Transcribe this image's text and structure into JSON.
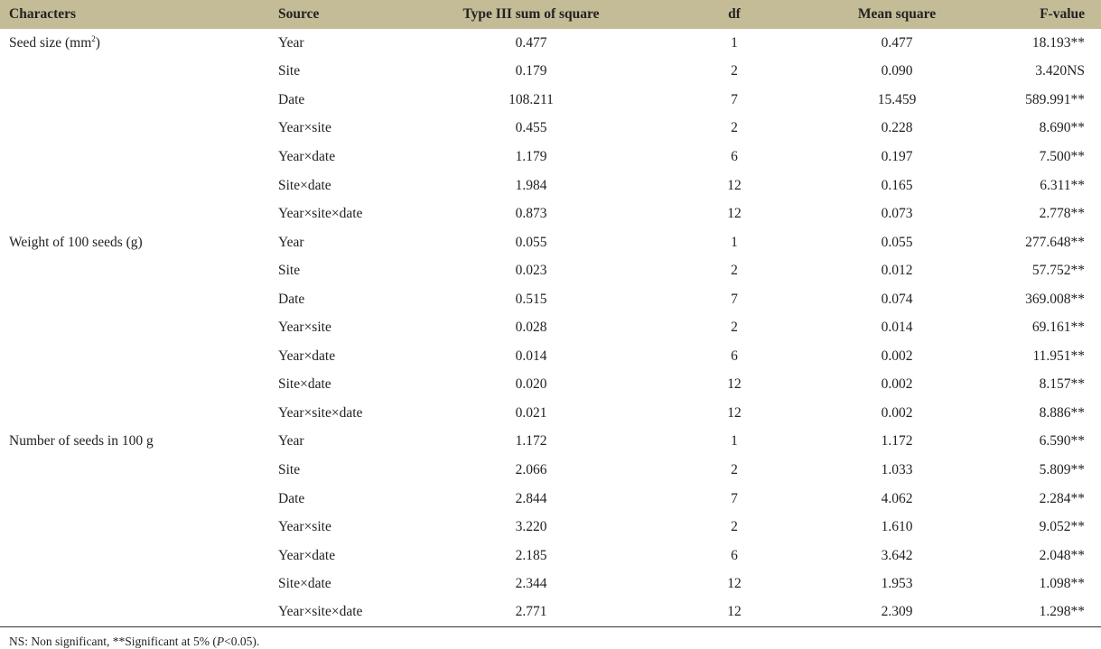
{
  "headers": [
    "Characters",
    "Source",
    "Type III sum of square",
    "df",
    "Mean square",
    "F-value"
  ],
  "header_bg": "#c4bb97",
  "groups": [
    {
      "character": "Seed size (mm",
      "character_sup": "2",
      "character_tail": ")",
      "rows": [
        [
          "Year",
          "0.477",
          "1",
          "0.477",
          "18.193**"
        ],
        [
          "Site",
          "0.179",
          "2",
          "0.090",
          "3.420NS"
        ],
        [
          "Date",
          "108.211",
          "7",
          "15.459",
          "589.991**"
        ],
        [
          "Year×site",
          "0.455",
          "2",
          "0.228",
          "8.690**"
        ],
        [
          "Year×date",
          "1.179",
          "6",
          "0.197",
          "7.500**"
        ],
        [
          "Site×date",
          "1.984",
          "12",
          "0.165",
          "6.311**"
        ],
        [
          "Year×site×date",
          "0.873",
          "12",
          "0.073",
          "2.778**"
        ]
      ]
    },
    {
      "character": "Weight of 100 seeds (g)",
      "rows": [
        [
          "Year",
          "0.055",
          "1",
          "0.055",
          "277.648**"
        ],
        [
          "Site",
          "0.023",
          "2",
          "0.012",
          "57.752**"
        ],
        [
          "Date",
          "0.515",
          "7",
          "0.074",
          "369.008**"
        ],
        [
          "Year×site",
          "0.028",
          "2",
          "0.014",
          "69.161**"
        ],
        [
          "Year×date",
          "0.014",
          "6",
          "0.002",
          "11.951**"
        ],
        [
          "Site×date",
          "0.020",
          "12",
          "0.002",
          "8.157**"
        ],
        [
          "Year×site×date",
          "0.021",
          "12",
          "0.002",
          "8.886**"
        ]
      ]
    },
    {
      "character": "Number of seeds in 100 g",
      "rows": [
        [
          "Year",
          "1.172",
          "1",
          "1.172",
          "6.590**"
        ],
        [
          "Site",
          "2.066",
          "2",
          "1.033",
          "5.809**"
        ],
        [
          "Date",
          "2.844",
          "7",
          "4.062",
          "2.284**"
        ],
        [
          "Year×site",
          "3.220",
          "2",
          "1.610",
          "9.052**"
        ],
        [
          "Year×date",
          "2.185",
          "6",
          "3.642",
          "2.048**"
        ],
        [
          "Site×date",
          "2.344",
          "12",
          "1.953",
          "1.098**"
        ],
        [
          "Year×site×date",
          "2.771",
          "12",
          "2.309",
          "1.298**"
        ]
      ]
    }
  ],
  "footnote": {
    "a": "NS: Non significant, **Significant at 5% (",
    "p": "P",
    "b": "<0.05)."
  }
}
